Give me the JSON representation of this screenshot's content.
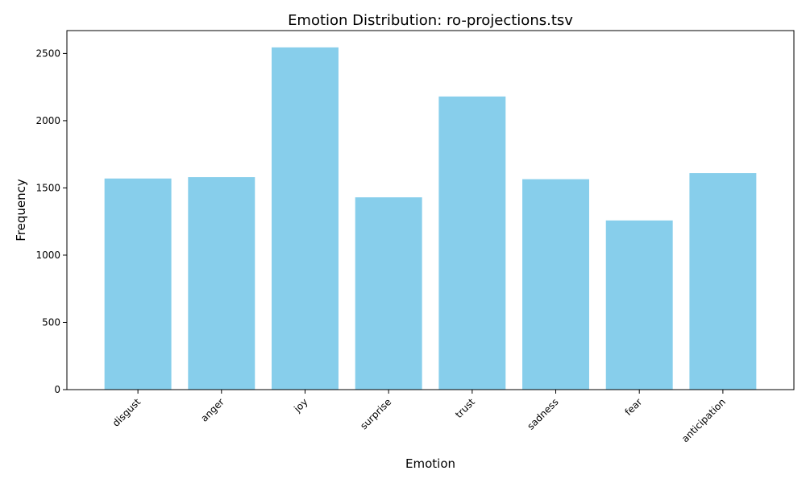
{
  "chart_data": {
    "type": "bar",
    "title": "Emotion Distribution: ro-projections.tsv",
    "xlabel": "Emotion",
    "ylabel": "Frequency",
    "categories": [
      "disgust",
      "anger",
      "joy",
      "surprise",
      "trust",
      "sadness",
      "fear",
      "anticipation"
    ],
    "values": [
      1570,
      1580,
      2545,
      1430,
      2180,
      1565,
      1258,
      1610
    ],
    "ylim": [
      0,
      2670
    ],
    "yticks": [
      0,
      500,
      1000,
      1500,
      2000,
      2500
    ],
    "bar_color": "#87CEEB",
    "grid": false,
    "legend": "none"
  }
}
